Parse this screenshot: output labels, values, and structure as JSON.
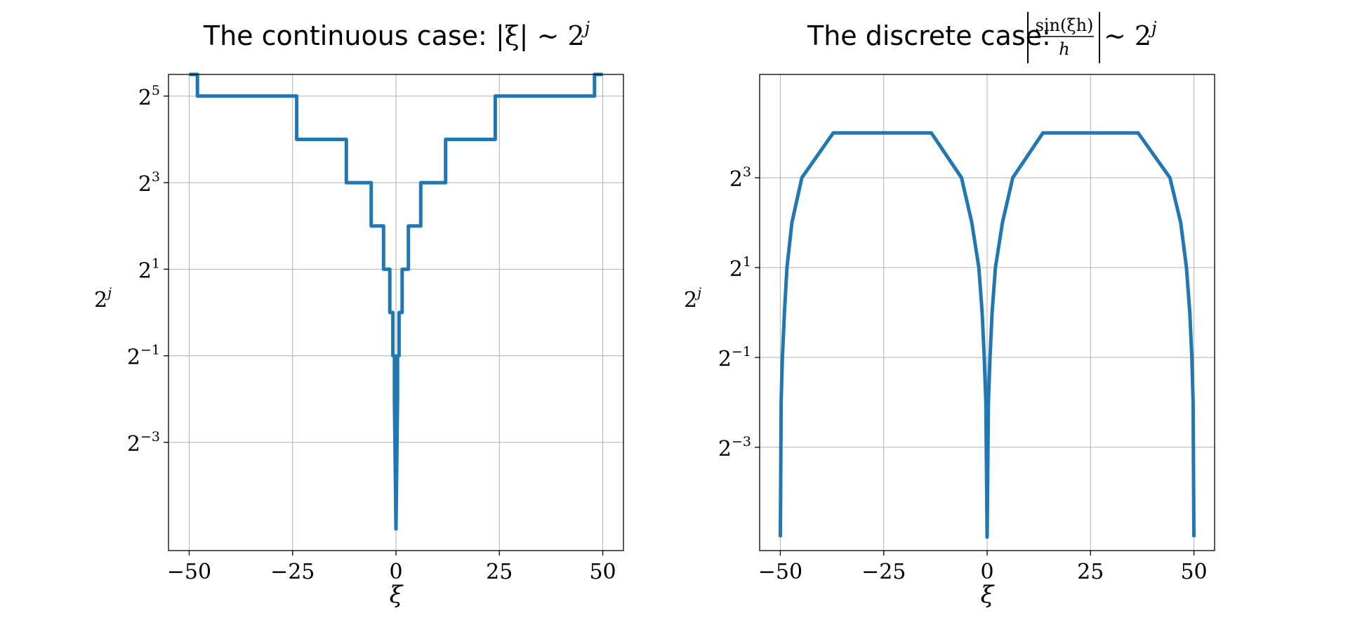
{
  "chart_data": [
    {
      "type": "line",
      "title": "The continuous case: |ξ| ∼ 2^j",
      "title_parts": {
        "text": "The continuous case: ",
        "lhs": "|ξ|",
        "sim": " ∼ ",
        "base": "2",
        "exp": "j"
      },
      "xlabel": "ξ",
      "ylabel": "2^j",
      "ylabel_parts": {
        "base": "2",
        "exp": "j"
      },
      "xlim": [
        -55,
        55
      ],
      "ylim_log2": [
        -5.5,
        5.5
      ],
      "yscale": "log2",
      "xticks": [
        -50,
        -25,
        0,
        25,
        50
      ],
      "xtick_labels": [
        "−50",
        "−25",
        "0",
        "25",
        "50"
      ],
      "yticks_log2": [
        -3,
        -1,
        1,
        3,
        5
      ],
      "ytick_labels": [
        {
          "base": "2",
          "exp": "−3"
        },
        {
          "base": "2",
          "exp": "−1"
        },
        {
          "base": "2",
          "exp": "1"
        },
        {
          "base": "2",
          "exp": "3"
        },
        {
          "base": "2",
          "exp": "5"
        }
      ],
      "grid": true,
      "color": "#1f77b4",
      "series": [
        {
          "x": [
            -50,
            -48,
            -48,
            -24,
            -24,
            -12,
            -12,
            -6,
            -6,
            -3,
            -3,
            -1.5,
            -1.5,
            -0.75,
            -0.75,
            -0.375,
            -0.375,
            0,
            0.375,
            0.375,
            0.75,
            0.75,
            1.5,
            1.5,
            3,
            3,
            6,
            6,
            12,
            12,
            24,
            24,
            48,
            48,
            50
          ],
          "y_log2": [
            5.5,
            5.5,
            5,
            5,
            4,
            4,
            3,
            3,
            2,
            2,
            1,
            1,
            0,
            0,
            -1,
            -1,
            -2,
            -5,
            -2,
            -1,
            -1,
            0,
            0,
            1,
            1,
            2,
            2,
            3,
            3,
            4,
            4,
            5,
            5,
            5.5,
            5.5
          ]
        }
      ]
    },
    {
      "type": "line",
      "title": "The discrete case: |sin(ξh)/h| ∼ 2^j",
      "title_parts": {
        "text": "The discrete case: ",
        "num": "sin(ξh)",
        "den": "h",
        "sim": " ∼ ",
        "base": "2",
        "exp": "j"
      },
      "xlabel": "ξ",
      "ylabel": "2^j",
      "ylabel_parts": {
        "base": "2",
        "exp": "j"
      },
      "xlim": [
        -55,
        55
      ],
      "ylim_log2": [
        -5.3,
        5.3
      ],
      "yscale": "log2",
      "xticks": [
        -50,
        -25,
        0,
        25,
        50
      ],
      "xtick_labels": [
        "−50",
        "−25",
        "0",
        "25",
        "50"
      ],
      "yticks_log2": [
        -3,
        -1,
        1,
        3
      ],
      "ytick_labels": [
        {
          "base": "2",
          "exp": "−3"
        },
        {
          "base": "2",
          "exp": "−1"
        },
        {
          "base": "2",
          "exp": "1"
        },
        {
          "base": "2",
          "exp": "3"
        }
      ],
      "grid": true,
      "color": "#1f77b4",
      "series": [
        {
          "x": [
            -50,
            -49.8,
            -49.5,
            -49,
            -48.4,
            -47.2,
            -44.8,
            -37.2,
            -13.5,
            -6.2,
            -3.7,
            -2.0,
            -1.2,
            -0.7,
            -0.3,
            0,
            0.3,
            0.7,
            1.2,
            2.0,
            3.7,
            6.2,
            13.5,
            36.5,
            44.2,
            46.8,
            48.2,
            49.0,
            49.5,
            49.8,
            50
          ],
          "y_log2": [
            -5,
            -2,
            -1,
            0,
            1,
            2,
            3,
            4,
            4,
            3,
            2,
            1,
            0,
            -1,
            -2,
            -5,
            -2,
            -1,
            0,
            1,
            2,
            3,
            4,
            4,
            3,
            2,
            1,
            0,
            -1,
            -2,
            -5
          ],
          "step": "discrete"
        }
      ]
    }
  ]
}
